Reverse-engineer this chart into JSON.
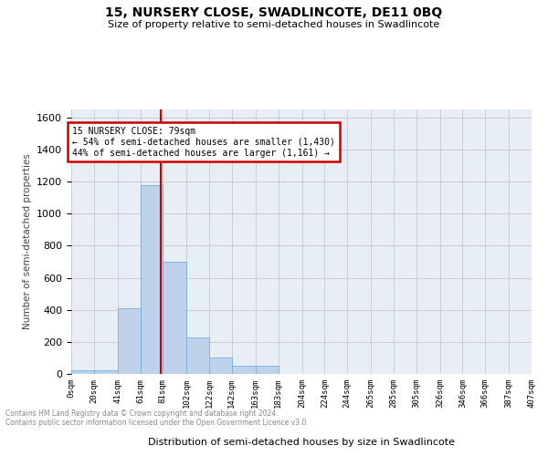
{
  "title": "15, NURSERY CLOSE, SWADLINCOTE, DE11 0BQ",
  "subtitle": "Size of property relative to semi-detached houses in Swadlincote",
  "xlabel": "Distribution of semi-detached houses by size in Swadlincote",
  "ylabel": "Number of semi-detached properties",
  "footnote1": "Contains HM Land Registry data © Crown copyright and database right 2024.",
  "footnote2": "Contains public sector information licensed under the Open Government Licence v3.0.",
  "bar_labels": [
    "0sqm",
    "20sqm",
    "41sqm",
    "61sqm",
    "81sqm",
    "102sqm",
    "122sqm",
    "142sqm",
    "163sqm",
    "183sqm",
    "204sqm",
    "224sqm",
    "244sqm",
    "265sqm",
    "285sqm",
    "305sqm",
    "326sqm",
    "346sqm",
    "366sqm",
    "387sqm",
    "407sqm"
  ],
  "bar_values": [
    25,
    25,
    410,
    1180,
    700,
    230,
    100,
    50,
    50,
    0,
    0,
    0,
    0,
    0,
    0,
    0,
    0,
    0,
    0,
    0,
    0
  ],
  "bar_color": "#bed3eb",
  "bar_edgecolor": "#7aadd4",
  "property_size": 79,
  "annotation_title": "15 NURSERY CLOSE: 79sqm",
  "annotation_line1": "← 54% of semi-detached houses are smaller (1,430)",
  "annotation_line2": "44% of semi-detached houses are larger (1,161) →",
  "annotation_box_color": "#ffffff",
  "annotation_box_edgecolor": "#cc0000",
  "red_line_color": "#cc0000",
  "ylim": [
    0,
    1650
  ],
  "background_color": "#e8eef6",
  "grid_color": "#c8c8c8",
  "bin_edges": [
    0,
    20,
    41,
    61,
    81,
    102,
    122,
    142,
    163,
    183,
    204,
    224,
    244,
    265,
    285,
    305,
    326,
    346,
    366,
    387,
    407
  ]
}
